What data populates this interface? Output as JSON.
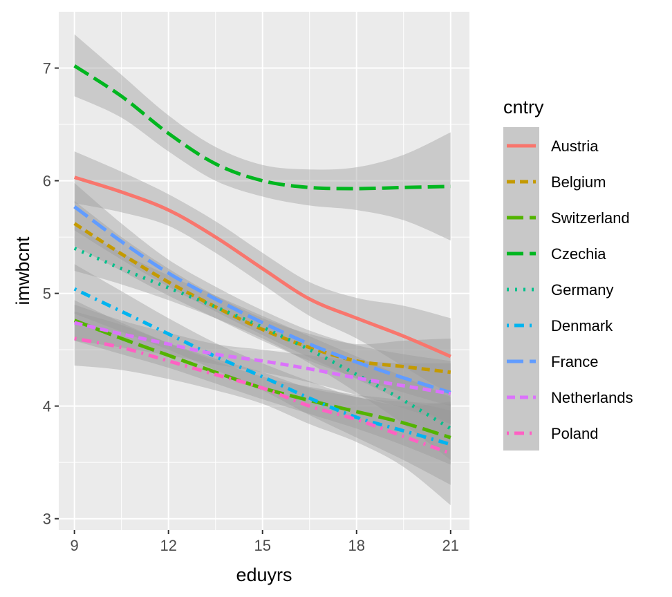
{
  "chart_data": {
    "type": "line",
    "xlabel": "eduyrs",
    "ylabel": "imwbcnt",
    "xlim": [
      8.5,
      21.6
    ],
    "ylim": [
      2.9,
      7.5
    ],
    "x_ticks": [
      9,
      12,
      15,
      18,
      21
    ],
    "x_tick_labels": [
      "9",
      "12",
      "15",
      "18",
      "21"
    ],
    "y_ticks": [
      3,
      4,
      5,
      6,
      7
    ],
    "y_tick_labels": [
      "3",
      "4",
      "5",
      "6",
      "7"
    ],
    "grid": true,
    "legend_title": "cntry",
    "legend_position": "right",
    "x": [
      9,
      10.5,
      12,
      13.5,
      15,
      16.5,
      18,
      19.5,
      21
    ],
    "series": [
      {
        "name": "Austria",
        "color": "#F8766D",
        "dash": "solid",
        "values": [
          6.03,
          5.9,
          5.74,
          5.5,
          5.22,
          4.95,
          4.78,
          4.62,
          4.44
        ],
        "ci_low": [
          5.8,
          5.72,
          5.6,
          5.36,
          5.08,
          4.8,
          4.6,
          4.35,
          4.1
        ],
        "ci_high": [
          6.26,
          6.08,
          5.88,
          5.64,
          5.36,
          5.1,
          4.96,
          4.89,
          4.78
        ]
      },
      {
        "name": "Belgium",
        "color": "#C49A00",
        "dash": "dashed",
        "values": [
          5.62,
          5.35,
          5.1,
          4.88,
          4.68,
          4.52,
          4.4,
          4.35,
          4.3
        ],
        "ci_low": [
          5.42,
          5.2,
          4.98,
          4.78,
          4.58,
          4.4,
          4.25,
          4.12,
          4.0
        ],
        "ci_high": [
          5.82,
          5.5,
          5.22,
          4.98,
          4.78,
          4.64,
          4.55,
          4.58,
          4.6
        ]
      },
      {
        "name": "Switzerland",
        "color": "#53B400",
        "dash": "longdash",
        "values": [
          4.76,
          4.6,
          4.45,
          4.3,
          4.16,
          4.05,
          3.95,
          3.85,
          3.72
        ],
        "ci_low": [
          4.58,
          4.46,
          4.34,
          4.2,
          4.06,
          3.93,
          3.8,
          3.65,
          3.48
        ],
        "ci_high": [
          4.94,
          4.74,
          4.56,
          4.4,
          4.26,
          4.17,
          4.1,
          4.05,
          3.96
        ]
      },
      {
        "name": "Czechia",
        "color": "#00B61F",
        "dash": "longdash",
        "values": [
          7.02,
          6.75,
          6.42,
          6.15,
          6.0,
          5.94,
          5.93,
          5.94,
          5.95
        ],
        "ci_low": [
          6.75,
          6.56,
          6.26,
          6.0,
          5.86,
          5.78,
          5.74,
          5.65,
          5.47
        ],
        "ci_high": [
          7.3,
          6.94,
          6.58,
          6.3,
          6.14,
          6.1,
          6.12,
          6.23,
          6.43
        ]
      },
      {
        "name": "Germany",
        "color": "#00C08B",
        "dash": "dotted",
        "values": [
          5.4,
          5.22,
          5.05,
          4.88,
          4.7,
          4.5,
          4.28,
          4.05,
          3.8
        ],
        "ci_low": [
          5.2,
          5.08,
          4.94,
          4.78,
          4.6,
          4.38,
          4.12,
          3.84,
          3.52
        ],
        "ci_high": [
          5.6,
          5.36,
          5.16,
          4.98,
          4.8,
          4.62,
          4.44,
          4.26,
          4.08
        ]
      },
      {
        "name": "Denmark",
        "color": "#00B4F0",
        "dash": "dotdash",
        "values": [
          5.04,
          4.84,
          4.64,
          4.44,
          4.26,
          4.07,
          3.9,
          3.78,
          3.66
        ],
        "ci_low": [
          4.82,
          4.66,
          4.5,
          4.32,
          4.14,
          3.92,
          3.72,
          3.52,
          3.3
        ],
        "ci_high": [
          5.26,
          5.02,
          4.78,
          4.56,
          4.38,
          4.22,
          4.08,
          4.04,
          4.02
        ]
      },
      {
        "name": "France",
        "color": "#619CFF",
        "dash": "longdash",
        "values": [
          5.77,
          5.46,
          5.18,
          4.95,
          4.74,
          4.55,
          4.39,
          4.25,
          4.12
        ],
        "ci_low": [
          5.56,
          5.3,
          5.06,
          4.84,
          4.63,
          4.43,
          4.24,
          4.04,
          3.84
        ],
        "ci_high": [
          5.98,
          5.62,
          5.3,
          5.06,
          4.85,
          4.67,
          4.54,
          4.46,
          4.4
        ]
      },
      {
        "name": "Netherlands",
        "color": "#DB72FB",
        "dash": "dashed",
        "values": [
          4.74,
          4.64,
          4.55,
          4.46,
          4.4,
          4.33,
          4.25,
          4.18,
          4.11
        ],
        "ci_low": [
          4.58,
          4.52,
          4.45,
          4.37,
          4.3,
          4.21,
          4.1,
          3.98,
          3.84
        ],
        "ci_high": [
          4.9,
          4.76,
          4.65,
          4.55,
          4.5,
          4.45,
          4.4,
          4.38,
          4.38
        ]
      },
      {
        "name": "Poland",
        "color": "#FF61C3",
        "dash": "dotdash",
        "values": [
          4.6,
          4.52,
          4.4,
          4.28,
          4.16,
          4.0,
          3.88,
          3.73,
          3.58
        ],
        "ci_low": [
          4.36,
          4.32,
          4.24,
          4.14,
          4.02,
          3.84,
          3.68,
          3.46,
          3.12
        ],
        "ci_high": [
          4.84,
          4.72,
          4.56,
          4.42,
          4.3,
          4.16,
          4.08,
          4.0,
          4.04
        ]
      }
    ]
  }
}
